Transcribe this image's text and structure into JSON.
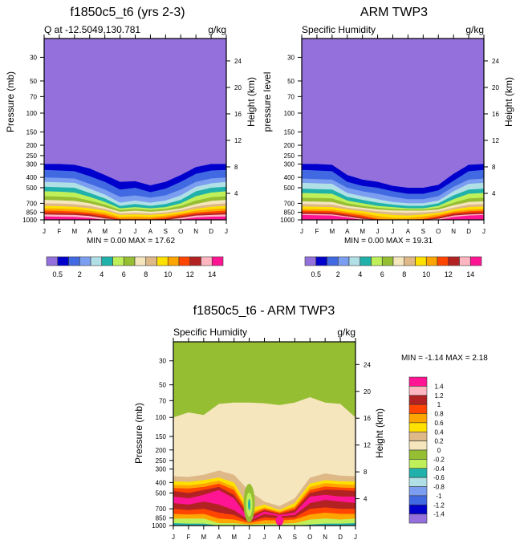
{
  "chart_data": [
    {
      "type": "heatmap",
      "id": "model",
      "title": "f1850c5_t6 (yrs 2-3)",
      "left_subtitle": "Q at -12.5049,130.781",
      "right_subtitle": "g/kg",
      "ylabel": "Pressure (mb)",
      "ylabel_right": "Height (km)",
      "x_tick_labels": [
        "J",
        "F",
        "M",
        "A",
        "M",
        "J",
        "J",
        "A",
        "S",
        "O",
        "N",
        "D",
        "J"
      ],
      "y_tick_labels": [
        "30",
        "50",
        "70",
        "100",
        "150",
        "200",
        "250",
        "300",
        "400",
        "500",
        "700",
        "850",
        "1000"
      ],
      "y_tick_values": [
        30,
        50,
        70,
        100,
        150,
        200,
        250,
        300,
        400,
        500,
        700,
        850,
        1000
      ],
      "y_right_tick_labels": [
        "24",
        "20",
        "16",
        "12",
        "8",
        "4"
      ],
      "ylim": [
        20,
        1000
      ],
      "min_max_text": "MIN =   0.00 MAX =  17.62",
      "levels": [
        0.5,
        1,
        2,
        3,
        4,
        5,
        6,
        7,
        8,
        9,
        10,
        11,
        12,
        13,
        14
      ],
      "colorbar_labels": [
        "0.5",
        "2",
        "4",
        "6",
        "8",
        "10",
        "12",
        "14"
      ],
      "colors": [
        "#9370db",
        "#0000cd",
        "#4169e1",
        "#7b9ef0",
        "#b0e0e6",
        "#20b2aa",
        "#bff05a",
        "#96be32",
        "#f5e6be",
        "#deb887",
        "#ffe100",
        "#ffa500",
        "#ff4500",
        "#b22222",
        "#ffb6c1",
        "#ff1493"
      ],
      "band_boundaries_mb": [
        [
          300,
          300,
          305,
          330,
          380,
          440,
          435,
          475,
          440,
          380,
          320,
          300,
          300
        ],
        [
          340,
          345,
          350,
          390,
          440,
          520,
          500,
          550,
          510,
          440,
          370,
          345,
          340
        ],
        [
          400,
          405,
          410,
          460,
          520,
          610,
          590,
          620,
          590,
          520,
          440,
          410,
          400
        ],
        [
          440,
          445,
          450,
          510,
          580,
          690,
          660,
          690,
          660,
          590,
          490,
          455,
          440
        ],
        [
          490,
          495,
          500,
          560,
          630,
          740,
          710,
          740,
          710,
          650,
          540,
          500,
          490
        ],
        [
          540,
          545,
          555,
          610,
          680,
          780,
          760,
          780,
          760,
          700,
          600,
          555,
          540
        ],
        [
          600,
          605,
          615,
          660,
          720,
          810,
          790,
          810,
          790,
          740,
          660,
          615,
          600
        ],
        [
          650,
          655,
          665,
          700,
          760,
          840,
          820,
          840,
          820,
          780,
          710,
          665,
          650
        ],
        [
          700,
          705,
          715,
          740,
          790,
          870,
          860,
          870,
          850,
          810,
          750,
          715,
          700
        ],
        [
          740,
          745,
          755,
          780,
          820,
          900,
          890,
          900,
          880,
          840,
          790,
          755,
          740
        ],
        [
          780,
          785,
          795,
          820,
          860,
          940,
          930,
          940,
          910,
          870,
          820,
          795,
          780
        ],
        [
          820,
          825,
          835,
          860,
          900,
          980,
          980,
          980,
          950,
          900,
          855,
          835,
          820
        ],
        [
          860,
          865,
          870,
          890,
          940,
          1000,
          1000,
          1000,
          980,
          930,
          885,
          870,
          860
        ],
        [
          890,
          895,
          900,
          920,
          970,
          1000,
          1000,
          1000,
          1000,
          960,
          910,
          900,
          890
        ],
        [
          930,
          935,
          940,
          960,
          1000,
          1000,
          1000,
          1000,
          1000,
          990,
          950,
          935,
          930
        ]
      ]
    },
    {
      "type": "heatmap",
      "id": "obs",
      "title": "ARM TWP3",
      "left_subtitle": "Specific Humidity",
      "right_subtitle": "g/kg",
      "ylabel": "pressure level",
      "ylabel_right": "Height (km)",
      "x_tick_labels": [
        "J",
        "F",
        "M",
        "A",
        "M",
        "J",
        "J",
        "A",
        "S",
        "O",
        "N",
        "D",
        "J"
      ],
      "y_tick_labels": [
        "30",
        "50",
        "70",
        "100",
        "150",
        "200",
        "250",
        "300",
        "400",
        "500",
        "700",
        "850",
        "1000"
      ],
      "y_tick_values": [
        30,
        50,
        70,
        100,
        150,
        200,
        250,
        300,
        400,
        500,
        700,
        850,
        1000
      ],
      "y_right_tick_labels": [
        "24",
        "20",
        "16",
        "12",
        "8",
        "4"
      ],
      "ylim": [
        20,
        1000
      ],
      "min_max_text": "MIN =   0.00 MAX =  19.31",
      "levels": [
        0.5,
        1,
        2,
        3,
        4,
        5,
        6,
        7,
        8,
        9,
        10,
        11,
        12,
        13,
        14
      ],
      "colorbar_labels": [
        "0.5",
        "2",
        "4",
        "6",
        "8",
        "10",
        "12",
        "14"
      ],
      "colors": [
        "#9370db",
        "#0000cd",
        "#4169e1",
        "#7b9ef0",
        "#b0e0e6",
        "#20b2aa",
        "#bff05a",
        "#96be32",
        "#f5e6be",
        "#deb887",
        "#ffe100",
        "#ffa500",
        "#ff4500",
        "#b22222",
        "#ffb6c1",
        "#ff1493"
      ],
      "band_boundaries_mb": [
        [
          300,
          300,
          305,
          380,
          420,
          440,
          480,
          500,
          500,
          470,
          370,
          305,
          300
        ],
        [
          340,
          345,
          350,
          440,
          480,
          500,
          540,
          570,
          570,
          530,
          430,
          350,
          340
        ],
        [
          410,
          415,
          420,
          500,
          540,
          570,
          610,
          640,
          640,
          600,
          490,
          420,
          410
        ],
        [
          450,
          455,
          460,
          560,
          600,
          640,
          680,
          700,
          700,
          660,
          540,
          460,
          450
        ],
        [
          510,
          515,
          520,
          610,
          650,
          690,
          720,
          740,
          740,
          700,
          590,
          520,
          510
        ],
        [
          560,
          565,
          570,
          660,
          700,
          740,
          760,
          780,
          780,
          740,
          640,
          570,
          560
        ],
        [
          620,
          625,
          630,
          700,
          740,
          770,
          790,
          800,
          800,
          770,
          690,
          630,
          620
        ],
        [
          670,
          675,
          680,
          740,
          770,
          800,
          815,
          820,
          820,
          800,
          730,
          680,
          670
        ],
        [
          710,
          715,
          720,
          770,
          800,
          830,
          850,
          860,
          850,
          830,
          770,
          720,
          710
        ],
        [
          750,
          755,
          760,
          800,
          830,
          870,
          900,
          910,
          890,
          860,
          800,
          760,
          750
        ],
        [
          790,
          795,
          800,
          840,
          870,
          920,
          960,
          960,
          930,
          890,
          830,
          800,
          790
        ],
        [
          820,
          825,
          830,
          870,
          910,
          980,
          1000,
          1000,
          980,
          920,
          860,
          830,
          820
        ],
        [
          850,
          855,
          860,
          900,
          950,
          1000,
          1000,
          1000,
          1000,
          950,
          880,
          860,
          850
        ],
        [
          880,
          885,
          890,
          930,
          980,
          1000,
          1000,
          1000,
          1000,
          980,
          910,
          890,
          880
        ],
        [
          900,
          905,
          910,
          950,
          1000,
          1000,
          1000,
          1000,
          1000,
          1000,
          940,
          910,
          900
        ]
      ]
    },
    {
      "type": "heatmap",
      "id": "diff",
      "title": "f1850c5_t6 - ARM TWP3",
      "left_subtitle": "Specific Humidity",
      "right_subtitle": "g/kg",
      "ylabel": "Pressure (mb)",
      "ylabel_right": "Height (km)",
      "x_tick_labels": [
        "J",
        "F",
        "M",
        "A",
        "M",
        "J",
        "J",
        "A",
        "S",
        "O",
        "N",
        "D",
        "J"
      ],
      "y_tick_labels": [
        "30",
        "50",
        "70",
        "100",
        "150",
        "200",
        "250",
        "300",
        "400",
        "500",
        "700",
        "850",
        "1000"
      ],
      "y_tick_values": [
        30,
        50,
        70,
        100,
        150,
        200,
        250,
        300,
        400,
        500,
        700,
        850,
        1000
      ],
      "y_right_tick_labels": [
        "24",
        "20",
        "16",
        "12",
        "8",
        "4"
      ],
      "ylim": [
        20,
        1000
      ],
      "min_max_text": "MIN =  -1.14 MAX =   2.18",
      "levels": [
        -1.4,
        -1.2,
        -1,
        -0.8,
        -0.6,
        -0.4,
        -0.2,
        0,
        0.2,
        0.4,
        0.6,
        0.8,
        1,
        1.2,
        1.4
      ],
      "colorbar_labels": [
        "1.4",
        "1.2",
        "1",
        "0.8",
        "0.6",
        "0.4",
        "0.2",
        "0",
        "-0.2",
        "-0.4",
        "-0.6",
        "-0.8",
        "-1",
        "-1.2",
        "-1.4"
      ],
      "colors": [
        "#9370db",
        "#0000cd",
        "#4169e1",
        "#7b9ef0",
        "#b0e0e6",
        "#20b2aa",
        "#bff05a",
        "#96be32",
        "#f5e6be",
        "#deb887",
        "#ffe100",
        "#ffa500",
        "#ff4500",
        "#b22222",
        "#ffb6c1",
        "#ff1493"
      ],
      "zero_boundary_mb": [
        100,
        90,
        95,
        75,
        73,
        73,
        74,
        77,
        73,
        65,
        73,
        75,
        100
      ]
    }
  ]
}
